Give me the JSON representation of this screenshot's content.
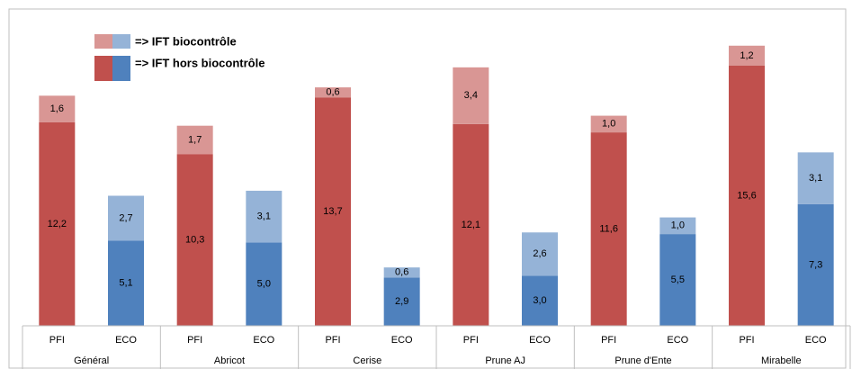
{
  "chart_data": {
    "type": "stacked_bar",
    "categories": [
      "PFI",
      "ECO",
      "PFI",
      "ECO",
      "PFI",
      "ECO",
      "PFI",
      "ECO",
      "PFI",
      "ECO",
      "PFI",
      "ECO"
    ],
    "groups": [
      "Général",
      "Abricot",
      "Cerise",
      "Prune AJ",
      "Prune d'Ente",
      "Mirabelle"
    ],
    "series": [
      {
        "name": "=> IFT hors biocontrôle",
        "colors": [
          "#c0504d",
          "#4f81bd"
        ],
        "values": [
          12.2,
          5.1,
          10.3,
          5.0,
          13.7,
          2.9,
          12.1,
          3.0,
          11.6,
          5.5,
          15.6,
          7.3
        ],
        "value_labels": [
          "12,2",
          "5,1",
          "10,3",
          "5,0",
          "13,7",
          "2,9",
          "12,1",
          "3,0",
          "11,6",
          "5,5",
          "15,6",
          "7,3"
        ]
      },
      {
        "name": "=> IFT biocontrôle",
        "colors": [
          "#d99694",
          "#95b3d7"
        ],
        "values": [
          1.6,
          2.7,
          1.7,
          3.1,
          0.6,
          0.6,
          3.4,
          2.6,
          1.0,
          1.0,
          1.2,
          3.1
        ],
        "value_labels": [
          "1,6",
          "2,7",
          "1,7",
          "3,1",
          "0,6",
          "0,6",
          "3,4",
          "2,6",
          "1,0",
          "1,0",
          "1,2",
          "3,1"
        ]
      }
    ],
    "ylim": [
      0,
      19
    ]
  }
}
